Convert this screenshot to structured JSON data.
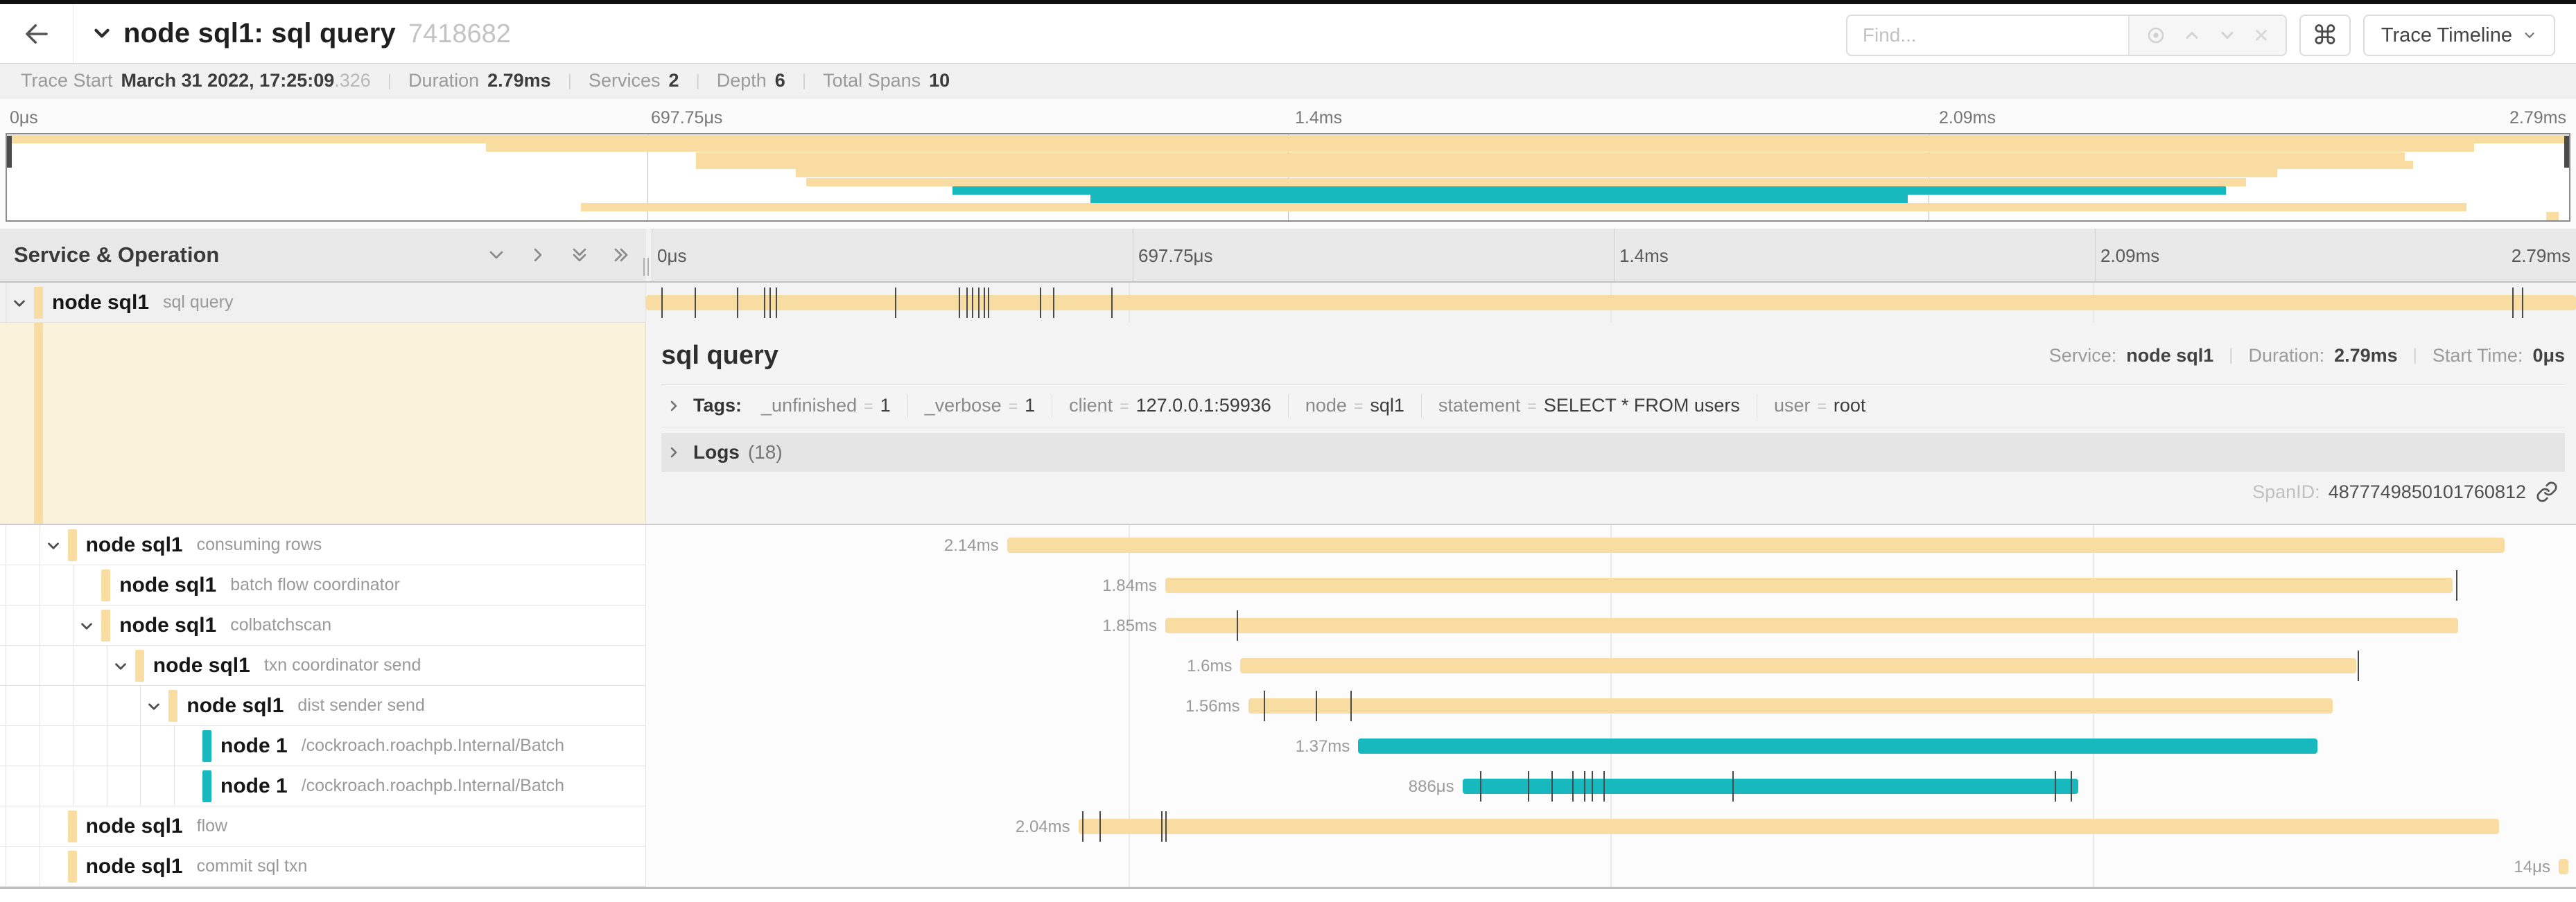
{
  "colors": {
    "tan": "#F8DCA1",
    "teal": "#17B8BE",
    "selected_row_bg": "#f0f0f0",
    "detail_left_bg": "#faf2da"
  },
  "header": {
    "back_icon": "arrow-left",
    "title": "node sql1: sql query",
    "trace_id": "7418682",
    "find_placeholder": "Find...",
    "find_value": "",
    "cmd_button": "⌘",
    "view_button": "Trace Timeline"
  },
  "meta": {
    "trace_start_label": "Trace Start",
    "trace_start_value": "March 31 2022, 17:25:09",
    "trace_start_fraction": ".326",
    "duration_label": "Duration",
    "duration_value": "2.79ms",
    "services_label": "Services",
    "services_value": "2",
    "depth_label": "Depth",
    "depth_value": "6",
    "total_spans_label": "Total Spans",
    "total_spans_value": "10"
  },
  "ruler": {
    "ticks": [
      "0μs",
      "697.75μs",
      "1.4ms",
      "2.09ms",
      "2.79ms"
    ],
    "positions_pct": [
      0,
      25,
      50,
      75,
      100
    ]
  },
  "left_header": {
    "title": "Service & Operation"
  },
  "detail": {
    "title": "sql query",
    "service_label": "Service:",
    "service_value": "node sql1",
    "duration_label": "Duration:",
    "duration_value": "2.79ms",
    "start_label": "Start Time:",
    "start_value": "0μs",
    "tags_label": "Tags:",
    "tags": [
      {
        "key": "_unfinished",
        "value": "1"
      },
      {
        "key": "_verbose",
        "value": "1"
      },
      {
        "key": "client",
        "value": "127.0.0.1:59936"
      },
      {
        "key": "node",
        "value": "sql1"
      },
      {
        "key": "statement",
        "value": "SELECT * FROM users"
      },
      {
        "key": "user",
        "value": "root"
      }
    ],
    "logs_label": "Logs",
    "logs_count": "(18)",
    "spanid_label": "SpanID:",
    "spanid_value": "4877749850101760812"
  },
  "spans": [
    {
      "service": "node sql1",
      "operation": "sql query",
      "level": 0,
      "color": "tan",
      "start_pct": 0,
      "end_pct": 100,
      "duration": "2.79ms",
      "show_duration_label": false,
      "expandable": true,
      "selected": true,
      "ticks_pct": [
        0.8,
        2.5,
        4.7,
        6.1,
        6.4,
        6.7,
        12.9,
        16.2,
        16.6,
        16.9,
        17.2,
        17.5,
        17.7,
        20.4,
        21.1,
        24.1,
        96.7,
        97.2
      ]
    },
    {
      "service": "node sql1",
      "operation": "consuming rows",
      "level": 1,
      "color": "tan",
      "start_pct": 18.7,
      "end_pct": 96.3,
      "duration": "2.14ms",
      "show_duration_label": true,
      "expandable": true,
      "selected": false,
      "ticks_pct": []
    },
    {
      "service": "node sql1",
      "operation": "batch flow coordinator",
      "level": 2,
      "color": "tan",
      "start_pct": 26.9,
      "end_pct": 93.6,
      "duration": "1.84ms",
      "show_duration_label": true,
      "expandable": false,
      "selected": false,
      "ticks_pct": [
        93.8
      ]
    },
    {
      "service": "node sql1",
      "operation": "colbatchscan",
      "level": 2,
      "color": "tan",
      "start_pct": 26.9,
      "end_pct": 93.9,
      "duration": "1.85ms",
      "show_duration_label": true,
      "expandable": true,
      "selected": false,
      "ticks_pct": [
        30.6
      ]
    },
    {
      "service": "node sql1",
      "operation": "txn coordinator send",
      "level": 3,
      "color": "tan",
      "start_pct": 30.8,
      "end_pct": 88.6,
      "duration": "1.6ms",
      "show_duration_label": true,
      "expandable": true,
      "selected": false,
      "ticks_pct": [
        88.7
      ]
    },
    {
      "service": "node sql1",
      "operation": "dist sender send",
      "level": 4,
      "color": "tan",
      "start_pct": 31.2,
      "end_pct": 87.4,
      "duration": "1.56ms",
      "show_duration_label": true,
      "expandable": true,
      "selected": false,
      "ticks_pct": [
        32.0,
        34.7,
        36.5
      ]
    },
    {
      "service": "node 1",
      "operation": "/cockroach.roachpb.Internal/Batch",
      "level": 5,
      "color": "teal",
      "start_pct": 36.9,
      "end_pct": 86.6,
      "duration": "1.37ms",
      "show_duration_label": true,
      "expandable": false,
      "selected": false,
      "ticks_pct": []
    },
    {
      "service": "node 1",
      "operation": "/cockroach.roachpb.Internal/Batch",
      "level": 5,
      "color": "teal",
      "start_pct": 42.3,
      "end_pct": 74.2,
      "duration": "886μs",
      "show_duration_label": true,
      "expandable": false,
      "selected": false,
      "ticks_pct": [
        43.2,
        45.7,
        46.9,
        48.0,
        48.6,
        49.0,
        49.6,
        56.3,
        73.0,
        73.8
      ]
    },
    {
      "service": "node sql1",
      "operation": "flow",
      "level": 1,
      "color": "tan",
      "start_pct": 22.4,
      "end_pct": 96.0,
      "duration": "2.04ms",
      "show_duration_label": true,
      "expandable": false,
      "selected": false,
      "ticks_pct": [
        22.6,
        23.5,
        26.7,
        26.9
      ]
    },
    {
      "service": "node sql1",
      "operation": "commit sql txn",
      "level": 1,
      "color": "tan",
      "start_pct": 99.1,
      "end_pct": 99.6,
      "duration": "14μs",
      "show_duration_label": true,
      "expandable": false,
      "selected": false,
      "ticks_pct": []
    }
  ]
}
